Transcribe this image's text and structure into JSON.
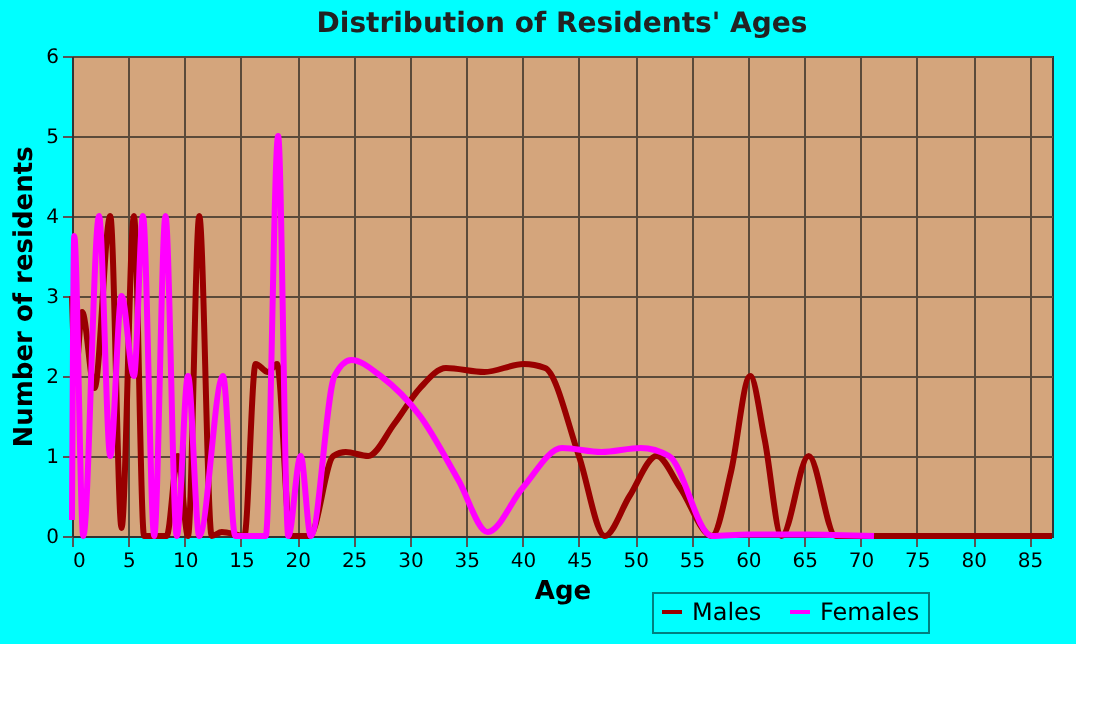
{
  "chart_data": {
    "type": "line",
    "title": "Distribution of Residents' Ages",
    "xlabel": "Age",
    "ylabel": "Number of residents",
    "xlim": [
      0,
      87
    ],
    "xticks": [
      0,
      5,
      10,
      15,
      20,
      25,
      30,
      35,
      40,
      45,
      50,
      55,
      60,
      65,
      70,
      75,
      80,
      85
    ],
    "ylim": [
      0,
      6
    ],
    "yticks": [
      0,
      1,
      2,
      3,
      4,
      5,
      6
    ],
    "grid": true,
    "legend": "bottom right",
    "line_style": "solid",
    "marker": "none",
    "series": [
      {
        "name": "Males",
        "color": "#990000",
        "x": [
          0,
          0.3,
          0.9,
          2,
          3.4,
          4.4,
          5.5,
          6.4,
          8.4,
          9.4,
          10.3,
          11.3,
          12.4,
          13.3,
          15.3,
          16.3,
          17.4,
          18.2,
          19.4,
          21.1,
          23.2,
          24.3,
          26.3,
          28.6,
          30.9,
          33.2,
          36.6,
          40.1,
          42,
          45,
          47.3,
          49.5,
          51.9,
          54,
          56.8,
          58.5,
          60.2,
          61.5,
          63,
          65.4,
          67.8,
          72,
          80,
          87
        ],
        "values": [
          3,
          2,
          2.8,
          1.85,
          4,
          0.1,
          4,
          0,
          0,
          1,
          0,
          4,
          0,
          0.05,
          0,
          2.15,
          2.05,
          2.15,
          0,
          0,
          1,
          1.05,
          1,
          1.4,
          1.85,
          2.1,
          2.05,
          2.15,
          2.1,
          1,
          0,
          0.5,
          1,
          0.6,
          0,
          0.8,
          2,
          1.2,
          0,
          1,
          0,
          0,
          0,
          0
        ]
      },
      {
        "name": "Females",
        "color": "#ff00ff",
        "x": [
          0,
          0.2,
          1,
          2.4,
          3.4,
          4.4,
          5.5,
          6.3,
          7.3,
          8.3,
          9.3,
          10.3,
          11.3,
          13.4,
          14.5,
          17.2,
          18.3,
          19.2,
          20.3,
          21.2,
          23.3,
          24.8,
          27.4,
          30.9,
          34.3,
          36.9,
          40,
          43.5,
          47,
          50.5,
          53,
          56.8,
          60,
          65,
          71.2
        ],
        "values": [
          0.2,
          3.75,
          0,
          4,
          1,
          3,
          2,
          4,
          0,
          4,
          0,
          2,
          0,
          2,
          0,
          0,
          5,
          0,
          1,
          0,
          2,
          2.2,
          2,
          1.5,
          0.7,
          0.05,
          0.6,
          1.1,
          1.05,
          1.1,
          1,
          0,
          0.02,
          0.02,
          0
        ]
      }
    ]
  }
}
